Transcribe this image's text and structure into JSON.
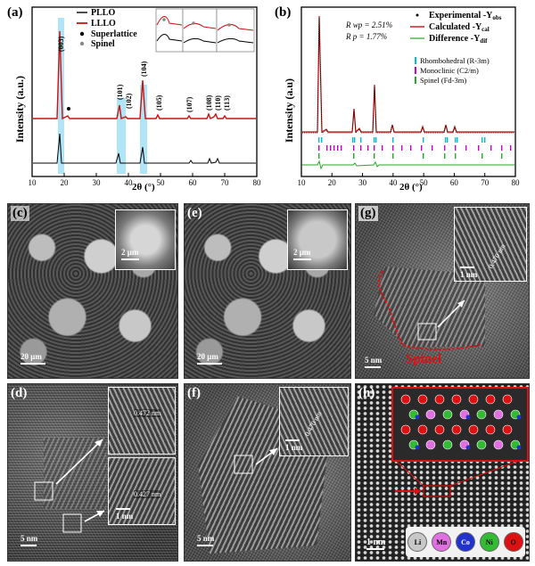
{
  "panel_a": {
    "label": "(a)",
    "legend": [
      "PLLO",
      "LLLO",
      "Superlattice",
      "Spinel"
    ],
    "ylabel": "Intensity (a.u.)",
    "xlabel": "2θ (°)",
    "xticks": [
      "10",
      "20",
      "30",
      "40",
      "50",
      "60",
      "70",
      "80"
    ],
    "peak_labels": [
      "(003)",
      "(101)",
      "(102)",
      "(104)",
      "(105)",
      "(107)",
      "(108)",
      "(110)",
      "(113)"
    ],
    "colors": {
      "pllo": "#000000",
      "lllo": "#cc1111",
      "highlight": "#6ecff0"
    }
  },
  "panel_b": {
    "label": "(b)",
    "ylabel": "Intensity (a.u)",
    "xlabel": "2θ (°)",
    "xticks": [
      "10",
      "20",
      "30",
      "40",
      "50",
      "60",
      "70",
      "80"
    ],
    "rwp": "R wp = 2.51%",
    "rp": "R p = 1.77%",
    "legend_obs": "Experimental -Y",
    "legend_obs_sub": "obs",
    "legend_cal": "Calculated -Y",
    "legend_cal_sub": "cal",
    "legend_dif": "Difference -Y",
    "legend_dif_sub": "dif",
    "phase1": "Rhombohedral (R-3m)",
    "phase2": "Monoclinic (C2/m)",
    "phase3": "Spinel (Fd-3m)",
    "colors": {
      "obs": "#000000",
      "cal": "#cc1111",
      "dif": "#22aa22",
      "rhombo": "#00bcd4",
      "mono": "#cc00cc",
      "spinel": "#22aa22"
    }
  },
  "panel_c": {
    "label": "(c)",
    "scale": "20 μm",
    "inset_scale": "2 μm"
  },
  "panel_e": {
    "label": "(e)",
    "scale": "20 μm",
    "inset_scale": "2 μm"
  },
  "panel_g": {
    "label": "(g)",
    "scale": "5 nm",
    "inset_scale": "1 nm",
    "spacing": "0.470 nm",
    "region": "Spinel"
  },
  "panel_d": {
    "label": "(d)",
    "scale": "5 nm",
    "inset_scale": "1 nm",
    "spacing1": "0.472 nm",
    "spacing2": "0.427 nm"
  },
  "panel_f": {
    "label": "(f)",
    "scale": "5 nm",
    "inset_scale": "1 nm",
    "spacing": "0.470 nm"
  },
  "panel_h": {
    "label": "(h)",
    "scale": "1 nm",
    "atoms": [
      {
        "symbol": "Li",
        "color": "#c8c8c8"
      },
      {
        "symbol": "Mn",
        "color": "#e070e0"
      },
      {
        "symbol": "Co",
        "color": "#2233cc"
      },
      {
        "symbol": "Ni",
        "color": "#33bb33"
      },
      {
        "symbol": "O",
        "color": "#dd1111"
      }
    ]
  }
}
